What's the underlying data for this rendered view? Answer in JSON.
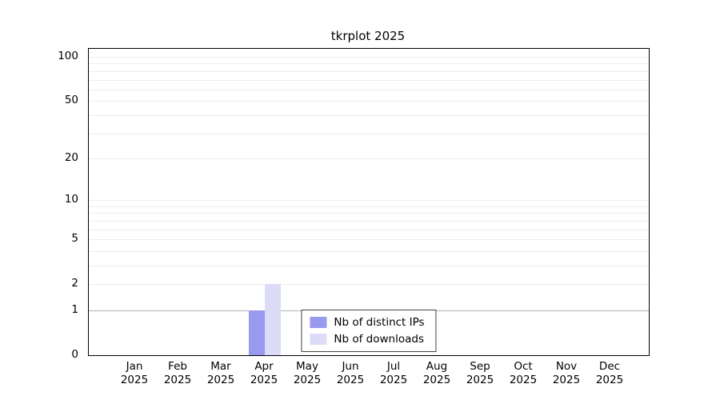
{
  "chart_data": {
    "type": "bar",
    "title": "tkrplot 2025",
    "scale": "log10(value+1)",
    "categories": [
      "Jan",
      "Feb",
      "Mar",
      "Apr",
      "May",
      "Jun",
      "Jul",
      "Aug",
      "Sep",
      "Oct",
      "Nov",
      "Dec"
    ],
    "year": "2025",
    "series": [
      {
        "name": "Nb of distinct IPs",
        "color": "#9999ee",
        "values": [
          0,
          0,
          0,
          1,
          0,
          0,
          0,
          0,
          0,
          0,
          0,
          0
        ]
      },
      {
        "name": "Nb of downloads",
        "color": "#dcdcf8",
        "values": [
          0,
          0,
          0,
          2,
          0,
          0,
          0,
          0,
          0,
          0,
          0,
          0
        ]
      }
    ],
    "y_ticks": [
      0,
      1,
      2,
      5,
      10,
      20,
      50,
      100
    ],
    "ylim": [
      0,
      110
    ],
    "grid": true,
    "legend_position": "bottom-center-inside"
  }
}
